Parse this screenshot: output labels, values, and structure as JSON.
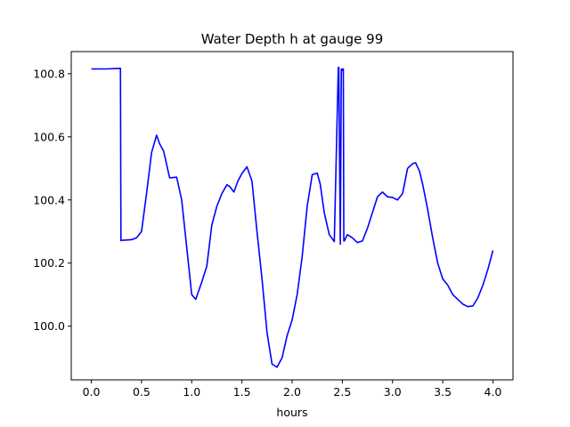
{
  "chart_data": {
    "type": "line",
    "title": "Water Depth h at gauge 99",
    "xlabel": "hours",
    "ylabel": "",
    "xlim": [
      -0.2,
      4.2
    ],
    "ylim": [
      99.83,
      100.87
    ],
    "xticks": [
      {
        "value": 0.0,
        "label": "0.0"
      },
      {
        "value": 0.5,
        "label": "0.5"
      },
      {
        "value": 1.0,
        "label": "1.0"
      },
      {
        "value": 1.5,
        "label": "1.5"
      },
      {
        "value": 2.0,
        "label": "2.0"
      },
      {
        "value": 2.5,
        "label": "2.5"
      },
      {
        "value": 3.0,
        "label": "3.0"
      },
      {
        "value": 3.5,
        "label": "3.5"
      },
      {
        "value": 4.0,
        "label": "4.0"
      }
    ],
    "yticks": [
      {
        "value": 100.0,
        "label": "100.0"
      },
      {
        "value": 100.2,
        "label": "100.2"
      },
      {
        "value": 100.4,
        "label": "100.4"
      },
      {
        "value": 100.6,
        "label": "100.6"
      },
      {
        "value": 100.8,
        "label": "100.8"
      }
    ],
    "grid": false,
    "legend": "none",
    "series": [
      {
        "color": "#0000ff",
        "x": [
          0.0,
          0.15,
          0.29,
          0.295,
          0.3,
          0.4,
          0.45,
          0.5,
          0.55,
          0.6,
          0.65,
          0.68,
          0.72,
          0.78,
          0.85,
          0.9,
          0.95,
          1.0,
          1.04,
          1.1,
          1.15,
          1.2,
          1.25,
          1.3,
          1.35,
          1.38,
          1.42,
          1.46,
          1.5,
          1.55,
          1.6,
          1.65,
          1.7,
          1.75,
          1.8,
          1.85,
          1.9,
          1.95,
          2.0,
          2.05,
          2.1,
          2.15,
          2.2,
          2.25,
          2.28,
          2.32,
          2.37,
          2.42,
          2.46,
          2.465,
          2.48,
          2.49,
          2.495,
          2.5,
          2.505,
          2.51,
          2.515,
          2.52,
          2.55,
          2.6,
          2.65,
          2.7,
          2.75,
          2.8,
          2.85,
          2.9,
          2.95,
          3.0,
          3.05,
          3.1,
          3.15,
          3.2,
          3.23,
          3.27,
          3.3,
          3.35,
          3.4,
          3.45,
          3.5,
          3.55,
          3.6,
          3.65,
          3.7,
          3.75,
          3.8,
          3.85,
          3.9,
          3.95,
          4.0
        ],
        "y": [
          100.815,
          100.815,
          100.817,
          100.271,
          100.272,
          100.274,
          100.28,
          100.3,
          100.42,
          100.55,
          100.605,
          100.578,
          100.555,
          100.47,
          100.472,
          100.4,
          100.25,
          100.1,
          100.085,
          100.14,
          100.19,
          100.32,
          100.38,
          100.42,
          100.448,
          100.442,
          100.425,
          100.46,
          100.484,
          100.505,
          100.46,
          100.3,
          100.15,
          99.98,
          99.88,
          99.87,
          99.9,
          99.97,
          100.02,
          100.1,
          100.22,
          100.38,
          100.48,
          100.485,
          100.45,
          100.36,
          100.29,
          100.268,
          100.82,
          100.82,
          100.26,
          100.815,
          100.815,
          100.81,
          100.812,
          100.815,
          100.27,
          100.27,
          100.29,
          100.28,
          100.265,
          100.27,
          100.31,
          100.36,
          100.41,
          100.425,
          100.41,
          100.408,
          100.4,
          100.42,
          100.5,
          100.515,
          100.518,
          100.49,
          100.45,
          100.37,
          100.28,
          100.2,
          100.15,
          100.13,
          100.1,
          100.085,
          100.07,
          100.062,
          100.064,
          100.09,
          100.13,
          100.18,
          100.24
        ]
      }
    ]
  }
}
